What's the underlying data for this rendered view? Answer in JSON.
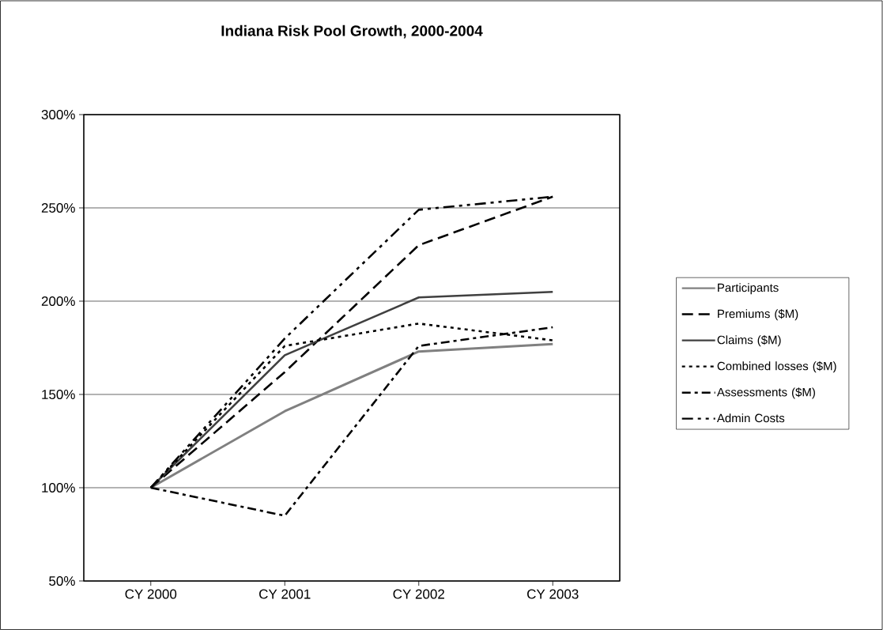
{
  "chart_data": {
    "type": "line",
    "title": "Indiana Risk Pool Growth, 2000-2004",
    "categories": [
      "CY 2000",
      "CY 2001",
      "CY 2002",
      "CY 2003"
    ],
    "series": [
      {
        "name": "Participants",
        "color": "#808080",
        "line_style": "solid",
        "values": [
          100,
          141,
          173,
          177
        ]
      },
      {
        "name": "Premiums ($M)",
        "color": "#000000",
        "line_style": "dashed",
        "values": [
          100,
          162,
          230,
          256
        ]
      },
      {
        "name": "Claims ($M)",
        "color": "#404040",
        "line_style": "solid",
        "values": [
          100,
          171,
          202,
          205
        ]
      },
      {
        "name": "Combined losses ($M)",
        "color": "#000000",
        "line_style": "dotted",
        "values": [
          100,
          176,
          188,
          179
        ]
      },
      {
        "name": "Assessments ($M)",
        "color": "#000000",
        "line_style": "dashdot",
        "values": [
          100,
          85,
          176,
          186
        ]
      },
      {
        "name": "Admin Costs",
        "color": "#000000",
        "line_style": "dashdotdot",
        "values": [
          100,
          180,
          249,
          256
        ]
      }
    ],
    "ylim": [
      50,
      300
    ],
    "yticks": [
      {
        "value": 50,
        "label": "50%"
      },
      {
        "value": 100,
        "label": "100%"
      },
      {
        "value": 150,
        "label": "150%"
      },
      {
        "value": 200,
        "label": "200%"
      },
      {
        "value": 250,
        "label": "250%"
      },
      {
        "value": 300,
        "label": "300%"
      }
    ],
    "grid": "y",
    "legend": "right",
    "marker": "none"
  }
}
